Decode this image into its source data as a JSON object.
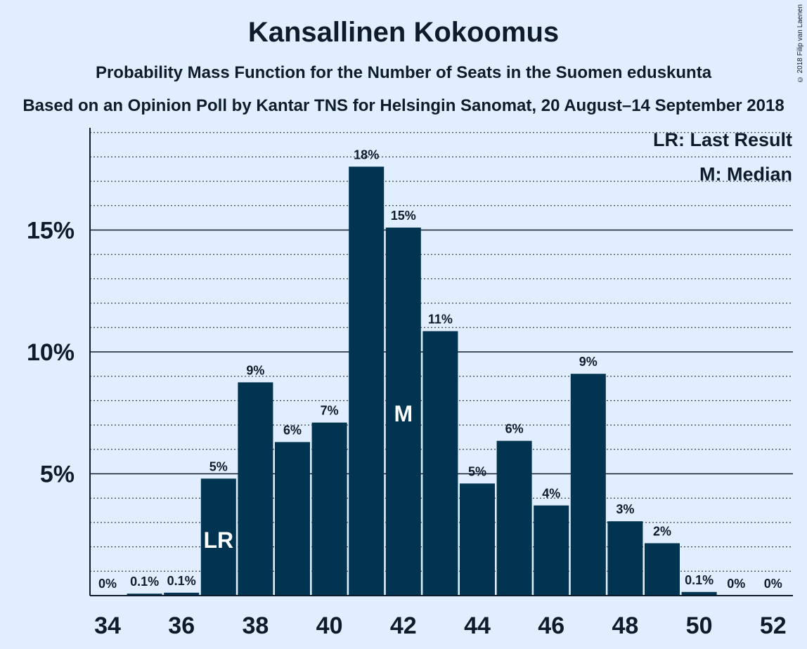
{
  "title": "Kansallinen Kokoomus",
  "subtitle": "Probability Mass Function for the Number of Seats in the Suomen eduskunta",
  "subtitle2": "Based on an Opinion Poll by Kantar TNS for Helsingin Sanomat, 20 August–14 September 2018",
  "copyright": "© 2018 Filip van Laenen",
  "colors": {
    "bar": "#003450",
    "background": "#e0eeff",
    "text": "#0d1b2a"
  },
  "chart_data": {
    "type": "bar",
    "xlabel": "",
    "ylabel": "",
    "seats": [
      34,
      35,
      36,
      37,
      38,
      39,
      40,
      41,
      42,
      43,
      44,
      45,
      46,
      47,
      48,
      49,
      50,
      51,
      52
    ],
    "values": [
      0,
      0.08,
      0.12,
      4.8,
      8.75,
      6.3,
      7.1,
      17.6,
      15.1,
      10.85,
      4.6,
      6.35,
      3.7,
      9.1,
      3.05,
      2.15,
      0.15,
      0,
      0
    ],
    "labels": [
      "0%",
      "0.1%",
      "0.1%",
      "5%",
      "9%",
      "6%",
      "7%",
      "18%",
      "15%",
      "11%",
      "5%",
      "6%",
      "4%",
      "9%",
      "3%",
      "2%",
      "0.1%",
      "0%",
      "0%"
    ],
    "x_tick_labels": [
      "34",
      "36",
      "38",
      "40",
      "42",
      "44",
      "46",
      "48",
      "50",
      "52"
    ],
    "y_tick_labels": [
      "5%",
      "10%",
      "15%"
    ],
    "y_ticks": [
      5,
      10,
      15
    ],
    "ylim": [
      0,
      19.2
    ],
    "minor_gridlines_every": 1,
    "last_result_seat": 37,
    "median_seat": 42,
    "last_result_marker": "LR",
    "median_marker": "M",
    "legend": [
      "LR: Last Result",
      "M: Median"
    ],
    "legend_position": "top-right"
  }
}
